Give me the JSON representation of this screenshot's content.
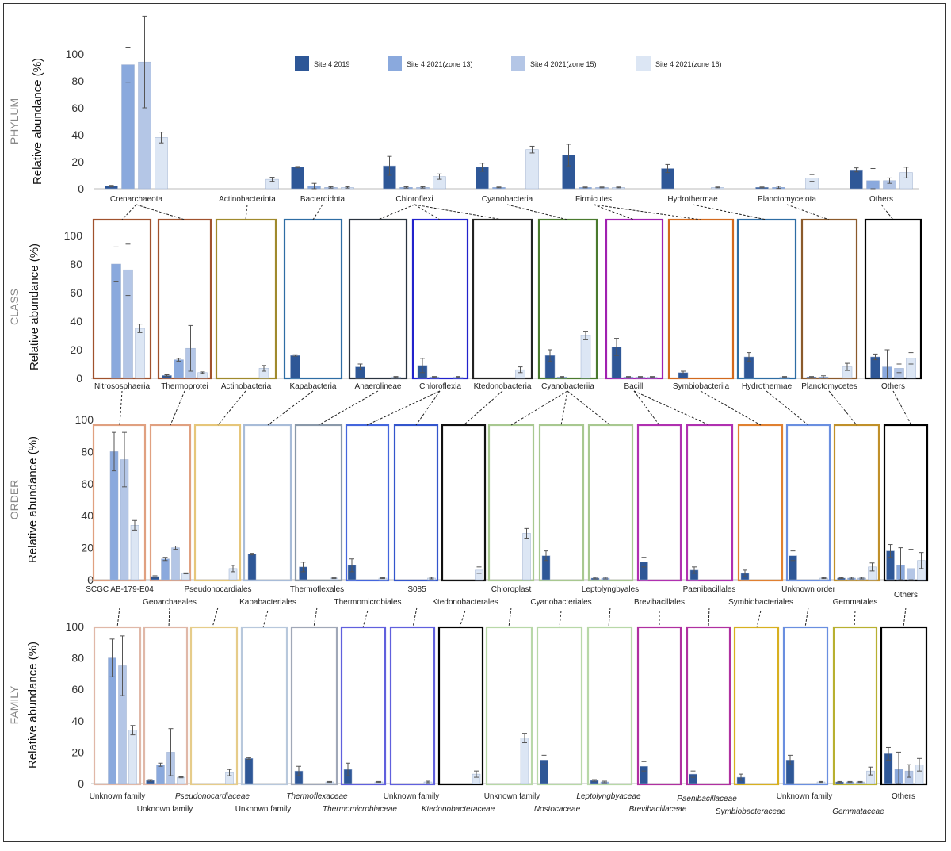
{
  "colors": {
    "site4_2019": "#2e5797",
    "zone13": "#8aa9dd",
    "zone15": "#b4c6e6",
    "zone16": "#dce6f4",
    "axis": "#333333",
    "err": "#555555"
  },
  "legend": [
    {
      "label": "Site 4 2019",
      "color": "#2e5797"
    },
    {
      "label": "Site 4 2021(zone 13)",
      "color": "#8aa9dd"
    },
    {
      "label": "Site 4 2021(zone 15)",
      "color": "#b4c6e6"
    },
    {
      "label": "Site 4 2021(zone 16)",
      "color": "#dce6f4"
    }
  ],
  "y_label": "Relative abundance (%)",
  "y_ticks": [
    "0",
    "20",
    "40",
    "60",
    "80",
    "100"
  ],
  "chart_data": [
    {
      "type": "bar",
      "level": "PHYLUM",
      "ylabel": "Relative abundance (%)",
      "ylim": [
        0,
        100
      ],
      "series_names": [
        "Site 4 2019",
        "Site 4 2021(zone 13)",
        "Site 4 2021(zone 15)",
        "Site 4 2021(zone 16)"
      ],
      "categories": [
        "Crenarchaeota",
        "Actinobacteriota",
        "Bacteroidota",
        "Chloroflexi",
        "Cyanobacteria",
        "Firmicutes",
        "Hydrothermae",
        "Planctomycetota",
        "Others"
      ],
      "values": [
        [
          2,
          92,
          94,
          38
        ],
        [
          0,
          0,
          0,
          7
        ],
        [
          16,
          2,
          1,
          1
        ],
        [
          17,
          1,
          1,
          9
        ],
        [
          16,
          1,
          0,
          29
        ],
        [
          25,
          1,
          1,
          1
        ],
        [
          15,
          0,
          0,
          1
        ],
        [
          1,
          1,
          0,
          8
        ],
        [
          14,
          6,
          6,
          12
        ]
      ],
      "errors": [
        [
          0.5,
          13,
          34,
          4
        ],
        [
          0,
          0,
          0,
          1.5
        ],
        [
          0.5,
          2,
          0.5,
          0.5
        ],
        [
          7,
          0.5,
          0.5,
          2
        ],
        [
          3,
          0.3,
          0,
          2.5
        ],
        [
          8,
          0.3,
          0.3,
          0.3
        ],
        [
          3,
          0,
          0,
          0.3
        ],
        [
          0.3,
          0.8,
          0,
          2.5
        ],
        [
          1.5,
          9,
          2,
          4
        ]
      ]
    },
    {
      "type": "bar",
      "level": "CLASS",
      "ylabel": "Relative abundance (%)",
      "ylim": [
        0,
        100
      ],
      "series_names": [
        "Site 4 2019",
        "Site 4 2021(zone 13)",
        "Site 4 2021(zone 15)",
        "Site 4 2021(zone 16)"
      ],
      "categories": [
        "Nitrososphaeria",
        "Thermoprotei",
        "Actinobacteria",
        "Kapabacteria",
        "Anaerolineae",
        "Chloroflexia",
        "Ktedonobacteria",
        "Cyanobacteriia",
        "Bacilli",
        "Symbiobacteriia",
        "Hydrothermae",
        "Planctomycetes",
        "Others"
      ],
      "values": [
        [
          0,
          80,
          76,
          35
        ],
        [
          2,
          13,
          21,
          4
        ],
        [
          0,
          0,
          0,
          7
        ],
        [
          16,
          0,
          0,
          0
        ],
        [
          8,
          0,
          0,
          1
        ],
        [
          9,
          1,
          0,
          1
        ],
        [
          0,
          0,
          0,
          6
        ],
        [
          16,
          1,
          0,
          30
        ],
        [
          22,
          1,
          1,
          1
        ],
        [
          4,
          0,
          0,
          0
        ],
        [
          15,
          0,
          0,
          1
        ],
        [
          1,
          1,
          0,
          8
        ],
        [
          15,
          8,
          7,
          14
        ]
      ],
      "errors": [
        [
          0,
          12,
          18,
          3
        ],
        [
          0.5,
          1,
          16,
          0.5
        ],
        [
          0,
          0,
          0,
          2
        ],
        [
          0.5,
          0,
          0,
          0
        ],
        [
          2,
          0,
          0,
          0.3
        ],
        [
          5,
          0.3,
          0,
          0.3
        ],
        [
          0,
          0,
          0,
          2
        ],
        [
          4,
          0.3,
          0,
          3
        ],
        [
          6,
          0.3,
          0.3,
          0.3
        ],
        [
          1,
          0,
          0,
          0
        ],
        [
          3,
          0,
          0,
          0.3
        ],
        [
          0.3,
          0.8,
          0,
          2.5
        ],
        [
          2,
          12,
          3,
          4
        ]
      ]
    },
    {
      "type": "bar",
      "level": "ORDER",
      "ylabel": "Relative abundance (%)",
      "ylim": [
        0,
        100
      ],
      "series_names": [
        "Site 4 2019",
        "Site 4 2021(zone 13)",
        "Site 4 2021(zone 15)",
        "Site 4 2021(zone 16)"
      ],
      "categories": [
        "SCGC AB-179-E04",
        "Geoarchaeales",
        "Pseudonocardiales",
        "Kapabacteriales",
        "Thermoflexales",
        "Thermomicrobiales",
        "S085",
        "Ktedonobacterales",
        "Chloroplast",
        "Cyanobacteriales",
        "Leptolyngbyales",
        "Brevibacillales",
        "Paenibacillales",
        "Symbiobacteriales",
        "Unknown order",
        "Gemmatales",
        "Others"
      ],
      "values": [
        [
          0,
          80,
          75,
          34
        ],
        [
          2,
          13,
          20,
          4
        ],
        [
          0,
          0,
          0,
          7
        ],
        [
          16,
          0,
          0,
          0
        ],
        [
          8,
          0,
          0,
          1
        ],
        [
          9,
          0,
          0,
          1
        ],
        [
          0,
          0,
          0,
          1
        ],
        [
          0,
          0,
          0,
          6
        ],
        [
          0,
          0,
          0,
          29
        ],
        [
          15,
          0,
          0,
          0
        ],
        [
          1,
          1,
          0,
          0
        ],
        [
          11,
          0,
          0,
          0
        ],
        [
          6,
          0,
          0,
          0
        ],
        [
          4,
          0,
          0,
          0
        ],
        [
          15,
          0,
          0,
          1
        ],
        [
          1,
          1,
          1,
          8
        ],
        [
          18,
          9,
          7,
          12
        ]
      ],
      "errors": [
        [
          0,
          12,
          17,
          3
        ],
        [
          0.5,
          1,
          1,
          0.3
        ],
        [
          0,
          0,
          0,
          2
        ],
        [
          0.5,
          0,
          0,
          0
        ],
        [
          3,
          0,
          0,
          0.3
        ],
        [
          4,
          0,
          0,
          0.3
        ],
        [
          0,
          0,
          0,
          0.5
        ],
        [
          0,
          0,
          0,
          2
        ],
        [
          0,
          0,
          0,
          3
        ],
        [
          3,
          0,
          0,
          0
        ],
        [
          0.5,
          0.5,
          0,
          0
        ],
        [
          3,
          0,
          0,
          0
        ],
        [
          2,
          0,
          0,
          0
        ],
        [
          2,
          0,
          0,
          0
        ],
        [
          3,
          0,
          0,
          0.3
        ],
        [
          0.3,
          0.5,
          0.5,
          2.5
        ],
        [
          4,
          11,
          12,
          5
        ]
      ]
    },
    {
      "type": "bar",
      "level": "FAMILY",
      "ylabel": "Relative abundance (%)",
      "ylim": [
        0,
        100
      ],
      "series_names": [
        "Site 4 2019",
        "Site 4 2021(zone 13)",
        "Site 4 2021(zone 15)",
        "Site 4 2021(zone 16)"
      ],
      "categories": [
        "Unknown family",
        "Unknown family",
        "Pseudonocardiaceae",
        "Unknown family",
        "Thermoflexaceae",
        "Thermomicrobiaceae",
        "Unknown family",
        "Ktedonobacteraceae",
        "Unknown family",
        "Nostocaceae",
        "Leptolyngbyaceae",
        "Brevibacillaceae",
        "Paenibacillaceae",
        "Symbiobacteraceae",
        "Unknown family",
        "Gemmataceae",
        "Others"
      ],
      "values": [
        [
          0,
          80,
          75,
          34
        ],
        [
          2,
          12,
          20,
          4
        ],
        [
          0,
          0,
          0,
          7
        ],
        [
          16,
          0,
          0,
          0
        ],
        [
          8,
          0,
          0,
          1
        ],
        [
          9,
          0,
          0,
          1
        ],
        [
          0,
          0,
          0,
          1
        ],
        [
          0,
          0,
          0,
          6
        ],
        [
          0,
          0,
          0,
          29
        ],
        [
          15,
          0,
          0,
          0
        ],
        [
          2,
          1,
          0,
          0
        ],
        [
          11,
          0,
          0,
          0
        ],
        [
          6,
          0,
          0,
          0
        ],
        [
          4,
          0,
          0,
          0
        ],
        [
          15,
          0,
          0,
          1
        ],
        [
          1,
          1,
          1,
          8
        ],
        [
          19,
          9,
          8,
          12
        ]
      ],
      "errors": [
        [
          0,
          12,
          19,
          3
        ],
        [
          0.5,
          1,
          15,
          0.3
        ],
        [
          0,
          0,
          0,
          2
        ],
        [
          0.5,
          0,
          0,
          0
        ],
        [
          3,
          0,
          0,
          0.3
        ],
        [
          4,
          0,
          0,
          0.3
        ],
        [
          0,
          0,
          0,
          0.5
        ],
        [
          0,
          0,
          0,
          2
        ],
        [
          0,
          0,
          0,
          3
        ],
        [
          3,
          0,
          0,
          0
        ],
        [
          0.5,
          0.5,
          0,
          0
        ],
        [
          3,
          0,
          0,
          0
        ],
        [
          2,
          0,
          0,
          0
        ],
        [
          2,
          0,
          0,
          0
        ],
        [
          3,
          0,
          0,
          0.3
        ],
        [
          0.3,
          0.3,
          0.3,
          2.5
        ],
        [
          4,
          11,
          4,
          4
        ]
      ]
    }
  ]
}
